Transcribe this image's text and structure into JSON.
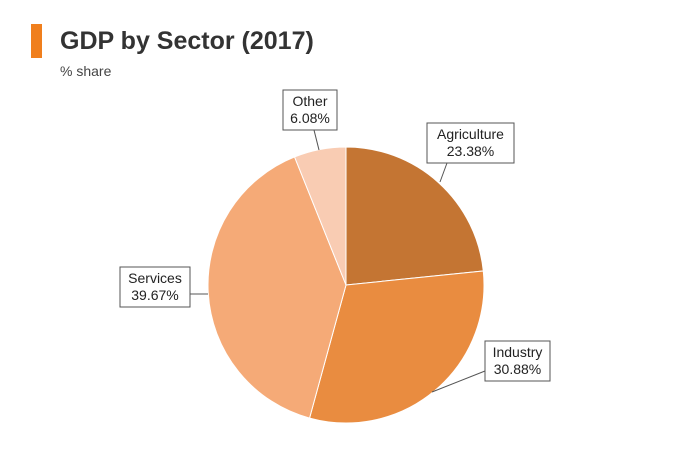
{
  "header": {
    "title": "GDP by Sector (2017)",
    "subtitle": "% share",
    "accent_color": "#f07f1d"
  },
  "chart_data": {
    "type": "pie",
    "title": "GDP by Sector (2017)",
    "subtitle": "% share",
    "start": "12 o'clock, clockwise",
    "slices": [
      {
        "name": "Agriculture",
        "value": 23.38,
        "label": "23.38%",
        "color": "#c47533"
      },
      {
        "name": "Industry",
        "value": 30.88,
        "label": "30.88%",
        "color": "#e98c40"
      },
      {
        "name": "Services",
        "value": 39.67,
        "label": "39.67%",
        "color": "#f5aa77"
      },
      {
        "name": "Other",
        "value": 6.08,
        "label": "6.08%",
        "color": "#f9ccb3"
      }
    ]
  }
}
